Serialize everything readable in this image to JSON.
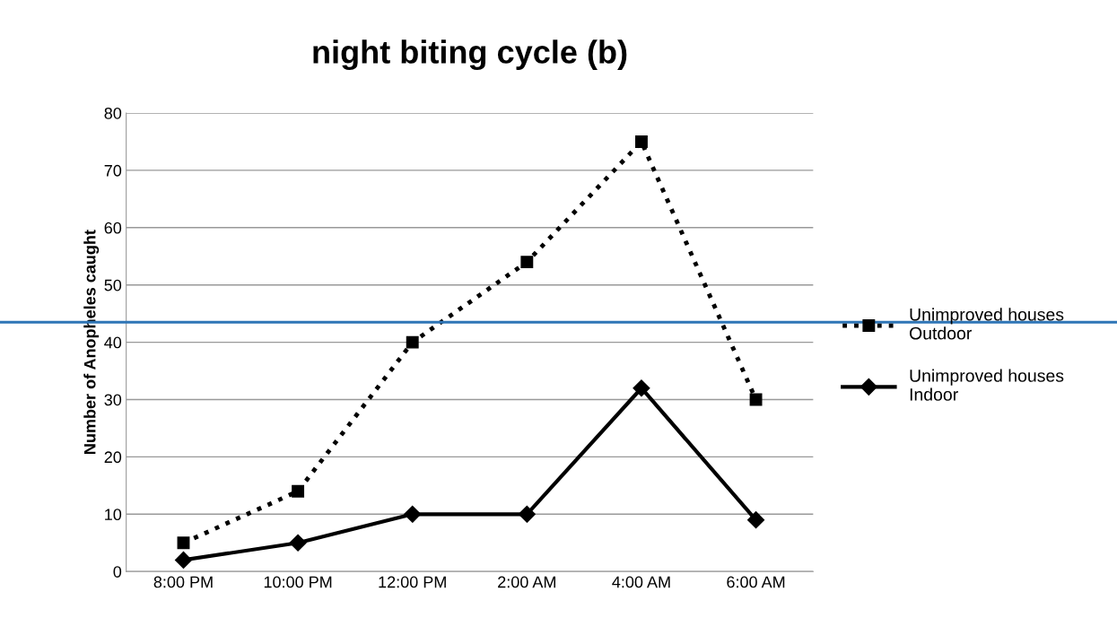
{
  "chart_data": {
    "type": "line",
    "title": "night biting cycle (b)",
    "ylabel": "Number of Anopheles caught",
    "categories": [
      "8:00 PM",
      "10:00 PM",
      "12:00 PM",
      "2:00 AM",
      "4:00 AM",
      "6:00 AM"
    ],
    "series": [
      {
        "name": "Unimproved houses\nOutdoor",
        "color": "#000000",
        "values": [
          5,
          14,
          40,
          54,
          75,
          30
        ],
        "marker": "square",
        "line_style": "dotted"
      },
      {
        "name": "Unimproved houses\nIndoor",
        "color": "#000000",
        "values": [
          2,
          5,
          10,
          10,
          32,
          9
        ],
        "marker": "diamond",
        "line_style": "solid"
      }
    ],
    "ylim": [
      0,
      80
    ],
    "yticks": [
      0,
      10,
      20,
      30,
      40,
      50,
      60,
      70,
      80
    ],
    "grid": "y",
    "legend": "right",
    "ref_lines": [
      {
        "axis": "y",
        "value": 43.5,
        "color": "#2e75b6"
      }
    ]
  }
}
